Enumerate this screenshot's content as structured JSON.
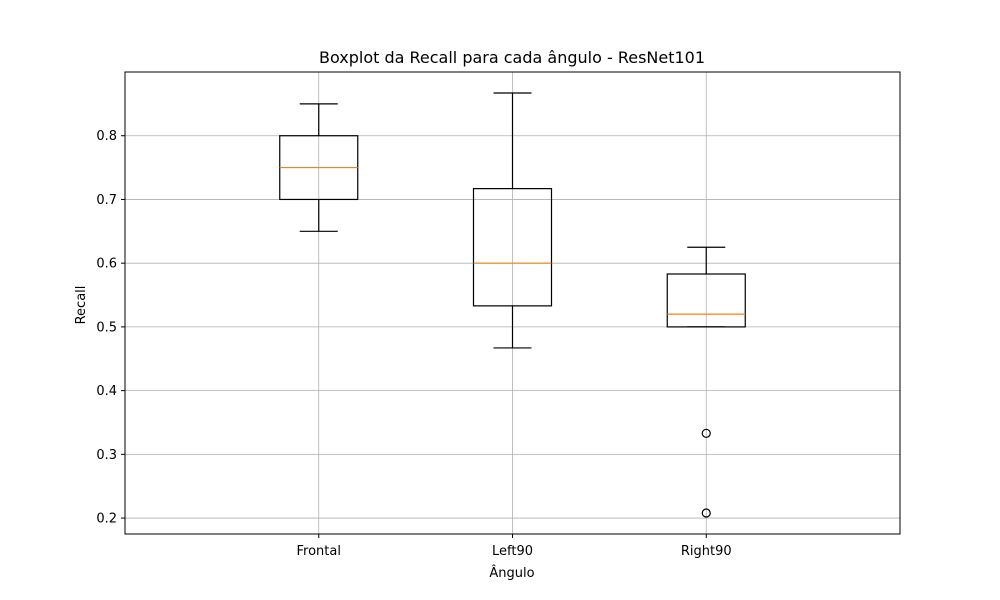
{
  "chart_data": {
    "type": "boxplot",
    "title": "Boxplot da Recall para cada ângulo - ResNet101",
    "xlabel": "Ângulo",
    "ylabel": "Recall",
    "ylim": [
      0.175,
      0.9
    ],
    "yticks": [
      "0.2",
      "0.3",
      "0.4",
      "0.5",
      "0.6",
      "0.7",
      "0.8"
    ],
    "grid": true,
    "categories": [
      "Frontal",
      "Left90",
      "Right90"
    ],
    "boxes": [
      {
        "category": "Frontal",
        "whisker_low": 0.65,
        "q1": 0.7,
        "median": 0.75,
        "q3": 0.8,
        "whisker_high": 0.85,
        "outliers": []
      },
      {
        "category": "Left90",
        "whisker_low": 0.467,
        "q1": 0.533,
        "median": 0.6,
        "q3": 0.717,
        "whisker_high": 0.867,
        "outliers": []
      },
      {
        "category": "Right90",
        "whisker_low": 0.5,
        "q1": 0.5,
        "median": 0.52,
        "q3": 0.583,
        "whisker_high": 0.625,
        "outliers": [
          0.333,
          0.208
        ]
      }
    ],
    "colors": {
      "box": "#000000",
      "median": "#ff7f0e",
      "grid": "#b0b0b0"
    }
  }
}
